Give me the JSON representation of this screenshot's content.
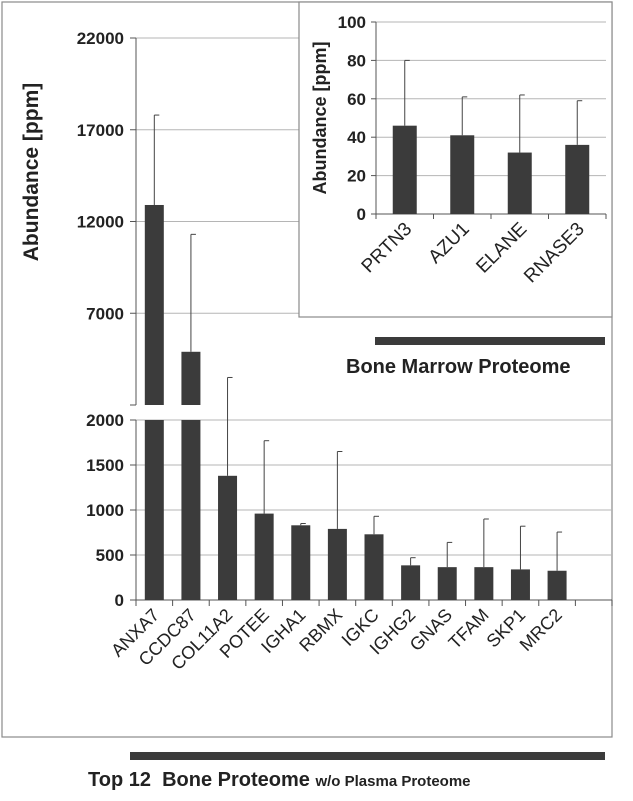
{
  "chart_data": [
    {
      "type": "bar",
      "categories": [
        "ANXA7",
        "CCDC87",
        "COL11A2",
        "POTEE",
        "IGHA1",
        "RBMX",
        "IGKC",
        "IGHG2",
        "GNAS",
        "TFAM",
        "SKP1",
        "MRC2"
      ],
      "values": [
        12900,
        4900,
        1380,
        960,
        830,
        790,
        730,
        385,
        365,
        365,
        340,
        325
      ],
      "error_upper": [
        17800,
        11300,
        3500,
        1770,
        850,
        1650,
        930,
        470,
        640,
        900,
        820,
        755
      ],
      "ylabel": "Abundance [ppm]",
      "axis_break": true,
      "lower_ylim": [
        0,
        2000
      ],
      "lower_yticks": [
        "0",
        "500",
        "1000",
        "1500",
        "2000"
      ],
      "upper_ylim": [
        2000,
        22000
      ],
      "upper_yticks": [
        "7000",
        "12000",
        "17000",
        "22000"
      ],
      "caption": {
        "main": "Top 12  Bone Proteome",
        "suffix": "w/o Plasma Proteome"
      },
      "bar_color": "#3b3b3b",
      "grid": true
    },
    {
      "type": "bar",
      "categories": [
        "PRTN3",
        "AZU1",
        "ELANE",
        "RNASE3"
      ],
      "values": [
        46,
        41,
        32,
        36
      ],
      "error_upper": [
        80,
        61,
        62,
        59
      ],
      "ylabel": "Abundance [ppm]",
      "ylim": [
        0,
        100
      ],
      "yticks": [
        "0",
        "20",
        "40",
        "60",
        "80",
        "100"
      ],
      "caption": "Bone Marrow Proteome",
      "bar_color": "#3b3b3b",
      "grid": true
    }
  ]
}
